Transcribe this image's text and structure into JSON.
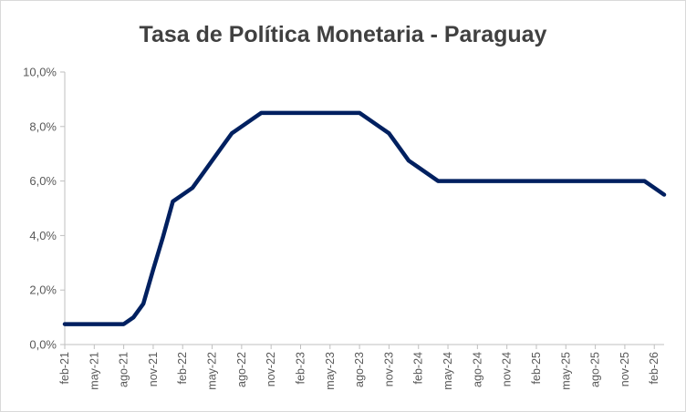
{
  "chart_data": {
    "type": "line",
    "title": "Tasa de Política Monetaria - Paraguay",
    "xlabel": "",
    "ylabel": "",
    "ylim": [
      0,
      10
    ],
    "y_ticks": [
      0,
      2,
      4,
      6,
      8,
      10
    ],
    "y_tick_labels": [
      "0,0%",
      "2,0%",
      "4,0%",
      "6,0%",
      "8,0%",
      "10,0%"
    ],
    "x_tick_labels": [
      "feb-21",
      "may-21",
      "ago-21",
      "nov-21",
      "feb-22",
      "may-22",
      "ago-22",
      "nov-22",
      "feb-23",
      "may-23",
      "ago-23",
      "nov-23",
      "feb-24",
      "may-24",
      "ago-24",
      "nov-24",
      "feb-25",
      "may-25",
      "ago-25",
      "nov-25",
      "feb-26"
    ],
    "grid": false,
    "legend": "none",
    "line_color": "#002060",
    "x": [
      "2021-02",
      "2021-03",
      "2021-04",
      "2021-05",
      "2021-06",
      "2021-07",
      "2021-08",
      "2021-09",
      "2021-10",
      "2021-11",
      "2021-12",
      "2022-01",
      "2022-02",
      "2022-03",
      "2022-04",
      "2022-05",
      "2022-06",
      "2022-07",
      "2022-08",
      "2022-09",
      "2022-10",
      "2022-11",
      "2022-12",
      "2023-01",
      "2023-02",
      "2023-03",
      "2023-04",
      "2023-05",
      "2023-06",
      "2023-07",
      "2023-08",
      "2023-09",
      "2023-10",
      "2023-11",
      "2023-12",
      "2024-01",
      "2024-02",
      "2024-03",
      "2024-04",
      "2024-05",
      "2024-06",
      "2024-07",
      "2024-08",
      "2024-09",
      "2024-10",
      "2024-11",
      "2024-12",
      "2025-01",
      "2025-02",
      "2025-03",
      "2025-04",
      "2025-05",
      "2025-06",
      "2025-07",
      "2025-08",
      "2025-09",
      "2025-10",
      "2025-11",
      "2025-12",
      "2026-01",
      "2026-02",
      "2026-03"
    ],
    "values": [
      0.75,
      0.75,
      0.75,
      0.75,
      0.75,
      0.75,
      0.75,
      1.0,
      1.5,
      2.75,
      3.95,
      5.25,
      5.5,
      5.75,
      6.25,
      6.75,
      7.25,
      7.75,
      8.0,
      8.25,
      8.5,
      8.5,
      8.5,
      8.5,
      8.5,
      8.5,
      8.5,
      8.5,
      8.5,
      8.5,
      8.5,
      8.25,
      8.0,
      7.75,
      7.25,
      6.75,
      6.5,
      6.25,
      6.0,
      6.0,
      6.0,
      6.0,
      6.0,
      6.0,
      6.0,
      6.0,
      6.0,
      6.0,
      6.0,
      6.0,
      6.0,
      6.0,
      6.0,
      6.0,
      6.0,
      6.0,
      6.0,
      6.0,
      6.0,
      6.0,
      5.75,
      5.5
    ]
  }
}
